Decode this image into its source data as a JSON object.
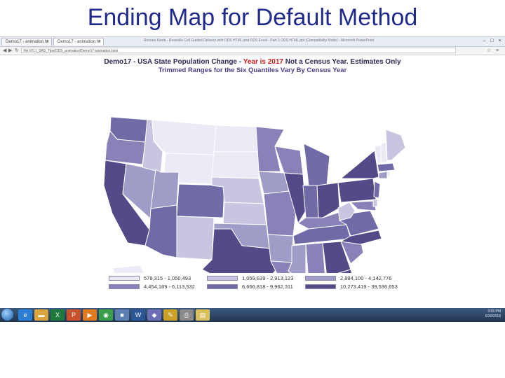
{
  "slide": {
    "title": "Ending Map for Default Method"
  },
  "browser": {
    "window_title": "Roxane Kieda - Roseville Cell Guided Delivery with ODS HTML and ODS Excel - Part 1 ODS HTML.ppt (Compatibility Mode) - Microsoft PowerPoint",
    "tabs": [
      {
        "label": "Demo17 - animation.ht"
      },
      {
        "label": "Demo17 - animation.ht"
      }
    ],
    "address": "file:///C:/_SAS_Tips/ODS_animation/Demo17-animation.html"
  },
  "map": {
    "heading_parts": [
      {
        "text": "Demo17 - USA State Population Change - ",
        "style": "dark"
      },
      {
        "text": "Year is 2017",
        "style": "red"
      },
      {
        "text": " Not a Census Year. Estimates Only",
        "style": "dark"
      }
    ],
    "subheading": "Trimmed Ranges for the Six Quantiles Vary By Census Year",
    "colors": [
      "#ecebf5",
      "#c7c5e0",
      "#a09cc8",
      "#8882b8",
      "#706aa6",
      "#544a88"
    ],
    "legend": [
      {
        "label": "579,315 - 1,050,493"
      },
      {
        "label": "1,059,639 - 2,913,123"
      },
      {
        "label": "2,884,100 - 4,142,776"
      },
      {
        "label": "4,454,189 - 6,113,532"
      },
      {
        "label": "6,666,818 - 9,962,311"
      },
      {
        "label": "10,273,419 - 39,536,653"
      }
    ]
  },
  "taskbar": {
    "apps": [
      {
        "name": "ie",
        "glyph": "e",
        "color": "#2a7fd4"
      },
      {
        "name": "folder",
        "glyph": "▬",
        "color": "#d9a53c"
      },
      {
        "name": "excel",
        "glyph": "X",
        "color": "#1d7a3c"
      },
      {
        "name": "powerpoint",
        "glyph": "P",
        "color": "#c8502a"
      },
      {
        "name": "media",
        "glyph": "▶",
        "color": "#e07a1a"
      },
      {
        "name": "chrome",
        "glyph": "◉",
        "color": "#3a9d4a"
      },
      {
        "name": "program",
        "glyph": "■",
        "color": "#5a7fb0"
      },
      {
        "name": "word",
        "glyph": "W",
        "color": "#2b5797"
      },
      {
        "name": "app",
        "glyph": "◆",
        "color": "#6d6db5"
      },
      {
        "name": "tool",
        "glyph": "✎",
        "color": "#c9a227"
      },
      {
        "name": "printer",
        "glyph": "⎙",
        "color": "#8a8a8a"
      },
      {
        "name": "notes",
        "glyph": "▤",
        "color": "#d8c15a"
      }
    ],
    "time": "3:06 PM",
    "date": "6/30/2018"
  }
}
